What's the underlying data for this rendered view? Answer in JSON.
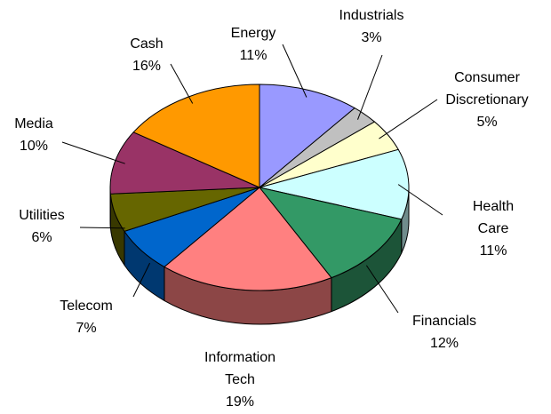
{
  "chart_data": {
    "type": "pie3d",
    "categories": [
      "Energy",
      "Industrials",
      "Consumer Discretionary",
      "Health Care",
      "Financials",
      "Information Tech",
      "Telecom",
      "Utilities",
      "Media",
      "Cash"
    ],
    "values": [
      11,
      3,
      5,
      11,
      12,
      19,
      7,
      6,
      10,
      16
    ],
    "value_labels": [
      "11%",
      "3%",
      "5%",
      "11%",
      "12%",
      "19%",
      "7%",
      "6%",
      "10%",
      "16%"
    ],
    "colors": [
      "#9999ff",
      "#c0c0c0",
      "#ffffcc",
      "#ccffff",
      "#339966",
      "#ff8080",
      "#0066cc",
      "#666600",
      "#993366",
      "#ff9900"
    ]
  }
}
